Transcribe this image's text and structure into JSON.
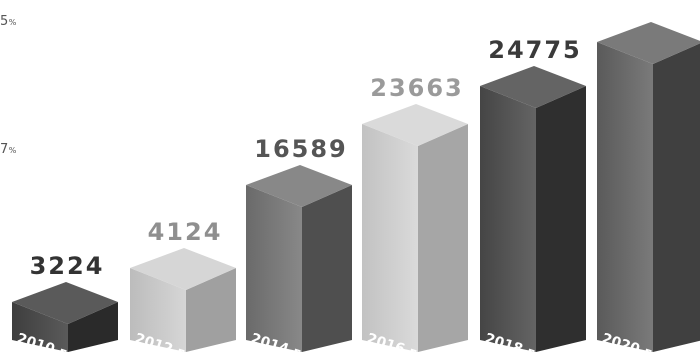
{
  "chart_data": {
    "type": "bar",
    "style": "3d-column",
    "categories": [
      "2010 г.",
      "2012 г.",
      "2014 г.",
      "2016 г.",
      "2018 г.",
      "2020 г."
    ],
    "values": [
      3224,
      4124,
      16589,
      23663,
      24775,
      null
    ],
    "value_labels": [
      "3224",
      "4124",
      "16589",
      "23663",
      "24775",
      ""
    ],
    "label_colors": [
      "#333333",
      "#8f8f8f",
      "#555555",
      "#9a9a9a",
      "#3a3a3a",
      "#3a3a3a"
    ],
    "bar_shades": [
      {
        "front": "#3e3e3e",
        "side": "#2a2a2a",
        "top": "#5a5a5a"
      },
      {
        "front": "#bcbcbc",
        "side": "#a0a0a0",
        "top": "#d6d6d6"
      },
      {
        "front": "#6a6a6a",
        "side": "#4f4f4f",
        "top": "#888888"
      },
      {
        "front": "#c2c2c2",
        "side": "#a6a6a6",
        "top": "#dadada"
      },
      {
        "front": "#454545",
        "side": "#2f2f2f",
        "top": "#646464"
      },
      {
        "front": "#5a5a5a",
        "side": "#404040",
        "top": "#7a7a7a"
      }
    ],
    "left_labels": [
      {
        "value": "5",
        "unit": "%"
      },
      {
        "value": "7",
        "unit": "%"
      }
    ],
    "title": "",
    "xlabel": "",
    "ylabel": "",
    "grid": false,
    "legend": "none"
  }
}
